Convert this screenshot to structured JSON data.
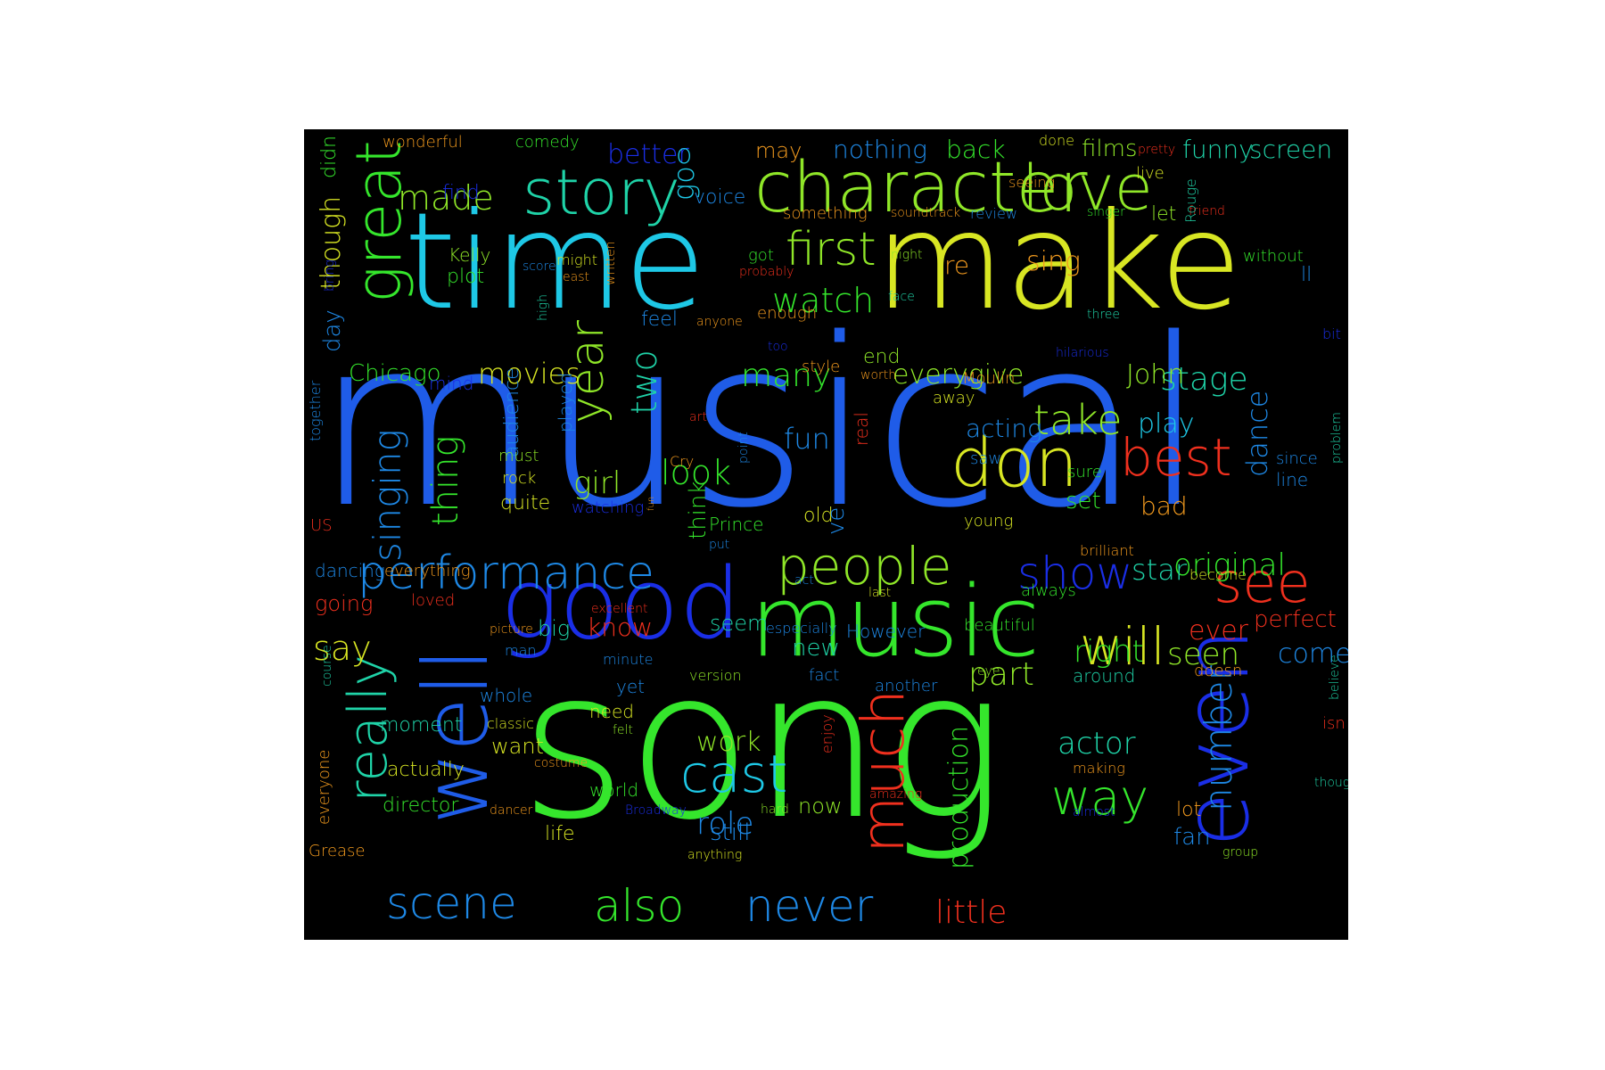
{
  "figure": {
    "background": "#000000",
    "page_background": "#ffffff"
  },
  "palette": {
    "dark_blue": "#1a2ee6",
    "blue": "#1f5ce8",
    "azure": "#1e88e5",
    "cyan": "#1ec8e6",
    "teal": "#1fd3a8",
    "green": "#35e62c",
    "lime": "#8fe628",
    "yellow": "#d8e623",
    "orange": "#f29a1e",
    "red": "#f0301e"
  },
  "words": [
    {
      "text": "musical",
      "color": "#1f5ce8"
    },
    {
      "text": "song",
      "color": "#35e62c"
    },
    {
      "text": "time",
      "color": "#1ec8e6"
    },
    {
      "text": "make",
      "color": "#d8e623"
    },
    {
      "text": "music",
      "color": "#35e62c"
    },
    {
      "text": "good",
      "color": "#1a2ee6"
    },
    {
      "text": "character",
      "color": "#8fe628"
    },
    {
      "text": "well",
      "color": "#1f5ce8"
    },
    {
      "text": "even",
      "color": "#1a2ee6"
    },
    {
      "text": "story",
      "color": "#1fd3a8"
    },
    {
      "text": "love",
      "color": "#8fe628"
    },
    {
      "text": "great",
      "color": "#35e62c"
    },
    {
      "text": "people",
      "color": "#8fe628"
    },
    {
      "text": "performance",
      "color": "#1e88e5"
    },
    {
      "text": "don",
      "color": "#d8e623"
    },
    {
      "text": "much",
      "color": "#f0301e"
    },
    {
      "text": "really",
      "color": "#1fd3a8"
    },
    {
      "text": "see",
      "color": "#f0301e"
    },
    {
      "text": "first",
      "color": "#8fe628"
    },
    {
      "text": "best",
      "color": "#f0301e"
    },
    {
      "text": "will",
      "color": "#d8e623"
    },
    {
      "text": "cast",
      "color": "#1ec8e6"
    },
    {
      "text": "way",
      "color": "#35e62c"
    },
    {
      "text": "year",
      "color": "#8fe628"
    },
    {
      "text": "scene",
      "color": "#1e88e5"
    },
    {
      "text": "never",
      "color": "#1e88e5"
    },
    {
      "text": "also",
      "color": "#35e62c"
    },
    {
      "text": "show",
      "color": "#1a2ee6"
    },
    {
      "text": "number",
      "color": "#1e88e5"
    },
    {
      "text": "take",
      "color": "#8fe628"
    },
    {
      "text": "little",
      "color": "#f0301e"
    },
    {
      "text": "singing",
      "color": "#1e88e5"
    },
    {
      "text": "thing",
      "color": "#35e62c"
    },
    {
      "text": "made",
      "color": "#8fe628"
    },
    {
      "text": "watch",
      "color": "#35e62c"
    },
    {
      "text": "many",
      "color": "#35e62c"
    },
    {
      "text": "movies",
      "color": "#d8e623"
    },
    {
      "text": "say",
      "color": "#d8e623"
    },
    {
      "text": "two",
      "color": "#1fd3a8"
    },
    {
      "text": "girl",
      "color": "#8fe628"
    },
    {
      "text": "look",
      "color": "#35e62c"
    },
    {
      "text": "actor",
      "color": "#1fd3a8"
    },
    {
      "text": "role",
      "color": "#1e88e5"
    },
    {
      "text": "work",
      "color": "#8fe628"
    },
    {
      "text": "part",
      "color": "#8fe628"
    },
    {
      "text": "production",
      "color": "#35e62c"
    },
    {
      "text": "stage",
      "color": "#1fd3a8"
    },
    {
      "text": "original",
      "color": "#35e62c"
    },
    {
      "text": "star",
      "color": "#1fd3a8"
    },
    {
      "text": "seen",
      "color": "#8fe628"
    },
    {
      "text": "right",
      "color": "#35e62c"
    },
    {
      "text": "ever",
      "color": "#f0301e"
    },
    {
      "text": "perfect",
      "color": "#f0301e"
    },
    {
      "text": "come",
      "color": "#1e88e5"
    },
    {
      "text": "play",
      "color": "#1ec8e6"
    },
    {
      "text": "bad",
      "color": "#f29a1e"
    },
    {
      "text": "dance",
      "color": "#1e88e5"
    },
    {
      "text": "fun",
      "color": "#1e88e5"
    },
    {
      "text": "acting",
      "color": "#1e88e5"
    },
    {
      "text": "John",
      "color": "#8fe628"
    },
    {
      "text": "everygive",
      "color": "#8fe628"
    },
    {
      "text": "Chicago",
      "color": "#35e62c"
    },
    {
      "text": "though",
      "color": "#d8e623"
    },
    {
      "text": "didn",
      "color": "#35e62c"
    },
    {
      "text": "wonderful",
      "color": "#f29a1e"
    },
    {
      "text": "comedy",
      "color": "#35e62c"
    },
    {
      "text": "better",
      "color": "#1a2ee6"
    },
    {
      "text": "o",
      "color": "#1ec8e6"
    },
    {
      "text": "may",
      "color": "#f29a1e"
    },
    {
      "text": "nothing",
      "color": "#1e88e5"
    },
    {
      "text": "back",
      "color": "#35e62c"
    },
    {
      "text": "done",
      "color": "#d8e623"
    },
    {
      "text": "films",
      "color": "#8fe628"
    },
    {
      "text": "pretty",
      "color": "#f0301e"
    },
    {
      "text": "funny",
      "color": "#1fd3a8"
    },
    {
      "text": "screen",
      "color": "#1fd3a8"
    },
    {
      "text": "go",
      "color": "#1ec8e6"
    },
    {
      "text": "voice",
      "color": "#1e88e5"
    },
    {
      "text": "find",
      "color": "#1a2ee6"
    },
    {
      "text": "seeing",
      "color": "#f29a1e"
    },
    {
      "text": "live",
      "color": "#d8e623"
    },
    {
      "text": "something",
      "color": "#f29a1e"
    },
    {
      "text": "soundtrack",
      "color": "#f29a1e"
    },
    {
      "text": "review",
      "color": "#1e88e5"
    },
    {
      "text": "singer",
      "color": "#35e62c"
    },
    {
      "text": "let",
      "color": "#8fe628"
    },
    {
      "text": "friend",
      "color": "#f0301e"
    },
    {
      "text": "Rouge",
      "color": "#1fd3a8"
    },
    {
      "text": "Kelly",
      "color": "#8fe628"
    },
    {
      "text": "plot",
      "color": "#35e62c"
    },
    {
      "text": "score",
      "color": "#1e88e5"
    },
    {
      "text": "might",
      "color": "#d8e623"
    },
    {
      "text": "east",
      "color": "#f29a1e"
    },
    {
      "text": "written",
      "color": "#f29a1e"
    },
    {
      "text": "got",
      "color": "#35e62c"
    },
    {
      "text": "probably",
      "color": "#f0301e"
    },
    {
      "text": "night",
      "color": "#8fe628"
    },
    {
      "text": "re",
      "color": "#f29a1e"
    },
    {
      "text": "sing",
      "color": "#f29a1e"
    },
    {
      "text": "without",
      "color": "#35e62c"
    },
    {
      "text": "ll",
      "color": "#1e88e5"
    },
    {
      "text": "bring",
      "color": "#1a2ee6"
    },
    {
      "text": "high",
      "color": "#1fd3a8"
    },
    {
      "text": "face",
      "color": "#1fd3a8"
    },
    {
      "text": "enough",
      "color": "#f29a1e"
    },
    {
      "text": "three",
      "color": "#1fd3a8"
    },
    {
      "text": "day",
      "color": "#1e88e5"
    },
    {
      "text": "feel",
      "color": "#1e88e5"
    },
    {
      "text": "anyone",
      "color": "#f29a1e"
    },
    {
      "text": "too",
      "color": "#1a2ee6"
    },
    {
      "text": "style",
      "color": "#f29a1e"
    },
    {
      "text": "end",
      "color": "#8fe628"
    },
    {
      "text": "hilarious",
      "color": "#1a2ee6"
    },
    {
      "text": "bit",
      "color": "#1a2ee6"
    },
    {
      "text": "worth",
      "color": "#f29a1e"
    },
    {
      "text": "Moulin",
      "color": "#f29a1e"
    },
    {
      "text": "together",
      "color": "#1e88e5"
    },
    {
      "text": "mind",
      "color": "#1a2ee6"
    },
    {
      "text": "audience",
      "color": "#1e88e5"
    },
    {
      "text": "played",
      "color": "#1e88e5"
    },
    {
      "text": "away",
      "color": "#d8e623"
    },
    {
      "text": "real",
      "color": "#f0301e"
    },
    {
      "text": "art",
      "color": "#f0301e"
    },
    {
      "text": "point",
      "color": "#1e88e5"
    },
    {
      "text": "saw",
      "color": "#1e88e5"
    },
    {
      "text": "since",
      "color": "#1e88e5"
    },
    {
      "text": "line",
      "color": "#1e88e5"
    },
    {
      "text": "problem",
      "color": "#1fd3a8"
    },
    {
      "text": "must",
      "color": "#8fe628"
    },
    {
      "text": "Cry",
      "color": "#f29a1e"
    },
    {
      "text": "sure",
      "color": "#35e62c"
    },
    {
      "text": "rock",
      "color": "#d8e623"
    },
    {
      "text": "quite",
      "color": "#d8e623"
    },
    {
      "text": "watching",
      "color": "#1a2ee6"
    },
    {
      "text": "think",
      "color": "#35e62c"
    },
    {
      "text": "fun2",
      "color": "#f29a1e"
    },
    {
      "text": "old",
      "color": "#d8e623"
    },
    {
      "text": "ve",
      "color": "#1e88e5"
    },
    {
      "text": "set",
      "color": "#35e62c"
    },
    {
      "text": "US",
      "color": "#f0301e"
    },
    {
      "text": "Prince",
      "color": "#35e62c"
    },
    {
      "text": "young",
      "color": "#d8e623"
    },
    {
      "text": "put",
      "color": "#1e88e5"
    },
    {
      "text": "brilliant",
      "color": "#f29a1e"
    },
    {
      "text": "dancing",
      "color": "#1e88e5"
    },
    {
      "text": "everything",
      "color": "#f29a1e"
    },
    {
      "text": "always",
      "color": "#35e62c"
    },
    {
      "text": "become",
      "color": "#d8e623"
    },
    {
      "text": "act",
      "color": "#1e88e5"
    },
    {
      "text": "last",
      "color": "#d8e623"
    },
    {
      "text": "going",
      "color": "#f0301e"
    },
    {
      "text": "loved",
      "color": "#f0301e"
    },
    {
      "text": "excellent",
      "color": "#f0301e"
    },
    {
      "text": "big",
      "color": "#1fd3a8"
    },
    {
      "text": "know",
      "color": "#f0301e"
    },
    {
      "text": "seem",
      "color": "#1fd3a8"
    },
    {
      "text": "especially",
      "color": "#1e88e5"
    },
    {
      "text": "However",
      "color": "#1e88e5"
    },
    {
      "text": "beautiful",
      "color": "#35e62c"
    },
    {
      "text": "new",
      "color": "#1fd3a8"
    },
    {
      "text": "picture",
      "color": "#f29a1e"
    },
    {
      "text": "man",
      "color": "#1e88e5"
    },
    {
      "text": "minute",
      "color": "#1e88e5"
    },
    {
      "text": "course",
      "color": "#1fd3a8"
    },
    {
      "text": "doesn",
      "color": "#f29a1e"
    },
    {
      "text": "believe",
      "color": "#1fd3a8"
    },
    {
      "text": "version",
      "color": "#8fe628"
    },
    {
      "text": "fact",
      "color": "#1e88e5"
    },
    {
      "text": "another",
      "color": "#1e88e5"
    },
    {
      "text": "eye",
      "color": "#8fe628"
    },
    {
      "text": "around",
      "color": "#1fd3a8"
    },
    {
      "text": "yet",
      "color": "#1e88e5"
    },
    {
      "text": "whole",
      "color": "#1e88e5"
    },
    {
      "text": "need",
      "color": "#d8e623"
    },
    {
      "text": "felt",
      "color": "#8fe628"
    },
    {
      "text": "moment",
      "color": "#1fd3a8"
    },
    {
      "text": "classic",
      "color": "#d8e623"
    },
    {
      "text": "want",
      "color": "#d8e623"
    },
    {
      "text": "costume",
      "color": "#f29a1e"
    },
    {
      "text": "enjoy",
      "color": "#f0301e"
    },
    {
      "text": "making",
      "color": "#f29a1e"
    },
    {
      "text": "isn",
      "color": "#f0301e"
    },
    {
      "text": "thought",
      "color": "#1fd3a8"
    },
    {
      "text": "actually",
      "color": "#d8e623"
    },
    {
      "text": "everyone",
      "color": "#f29a1e"
    },
    {
      "text": "world",
      "color": "#35e62c"
    },
    {
      "text": "director",
      "color": "#35e62c"
    },
    {
      "text": "dancer",
      "color": "#f29a1e"
    },
    {
      "text": "Broadway",
      "color": "#1a2ee6"
    },
    {
      "text": "hard",
      "color": "#8fe628"
    },
    {
      "text": "now",
      "color": "#8fe628"
    },
    {
      "text": "amazing",
      "color": "#f0301e"
    },
    {
      "text": "almost",
      "color": "#1a2ee6"
    },
    {
      "text": "lot",
      "color": "#f29a1e"
    },
    {
      "text": "fan",
      "color": "#1e88e5"
    },
    {
      "text": "group",
      "color": "#8fe628"
    },
    {
      "text": "Grease",
      "color": "#f29a1e"
    },
    {
      "text": "life",
      "color": "#d8e623"
    },
    {
      "text": "still",
      "color": "#1e88e5"
    },
    {
      "text": "anything",
      "color": "#d8e623"
    }
  ]
}
